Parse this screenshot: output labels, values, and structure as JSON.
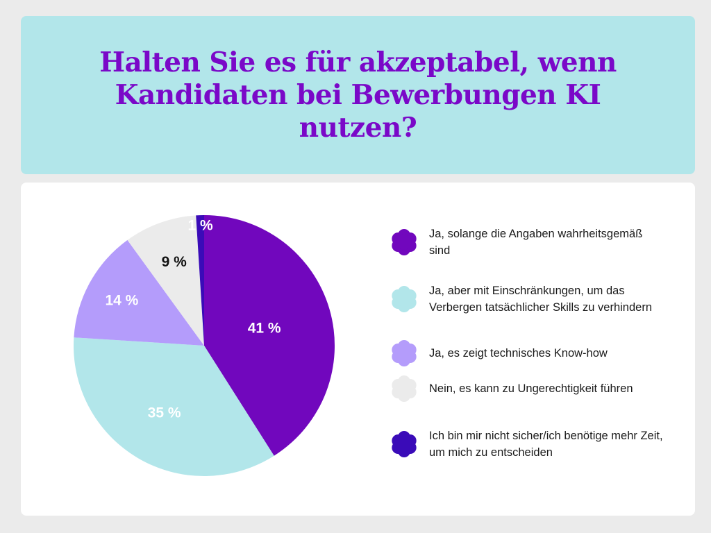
{
  "title": "Halten Sie es für akzeptabel, wenn Kandidaten bei Bewerbungen KI nutzen?",
  "chart_data": {
    "type": "pie",
    "title": "Halten Sie es für akzeptabel, wenn Kandidaten bei Bewerbungen KI nutzen?",
    "unit": "%",
    "slices": [
      {
        "label": "Ja, solange die Angaben wahrheitsgemäß sind",
        "value": 41,
        "display": "41 %",
        "color": "#7107bd",
        "text_color": "#ffffff"
      },
      {
        "label": "Ja, aber mit Einschränkungen, um das Verbergen tatsächlicher Skills zu verhindern",
        "value": 35,
        "display": "35 %",
        "color": "#b2e6ea",
        "text_color": "#ffffff"
      },
      {
        "label": "Ja, es zeigt technisches Know-how",
        "value": 14,
        "display": "14 %",
        "color": "#b49cfb",
        "text_color": "#ffffff"
      },
      {
        "label": "Nein, es kann zu Ungerechtigkeit führen",
        "value": 9,
        "display": "9 %",
        "color": "#ebebeb",
        "text_color": "#111111"
      },
      {
        "label": "Ich bin mir nicht sicher/ich benötige mehr Zeit, um mich zu entscheiden",
        "value": 1,
        "display": "1 %",
        "color": "#3a0bb8",
        "text_color": "#ffffff"
      }
    ],
    "legend_position": "right",
    "legend_icon": "flower-icon"
  }
}
